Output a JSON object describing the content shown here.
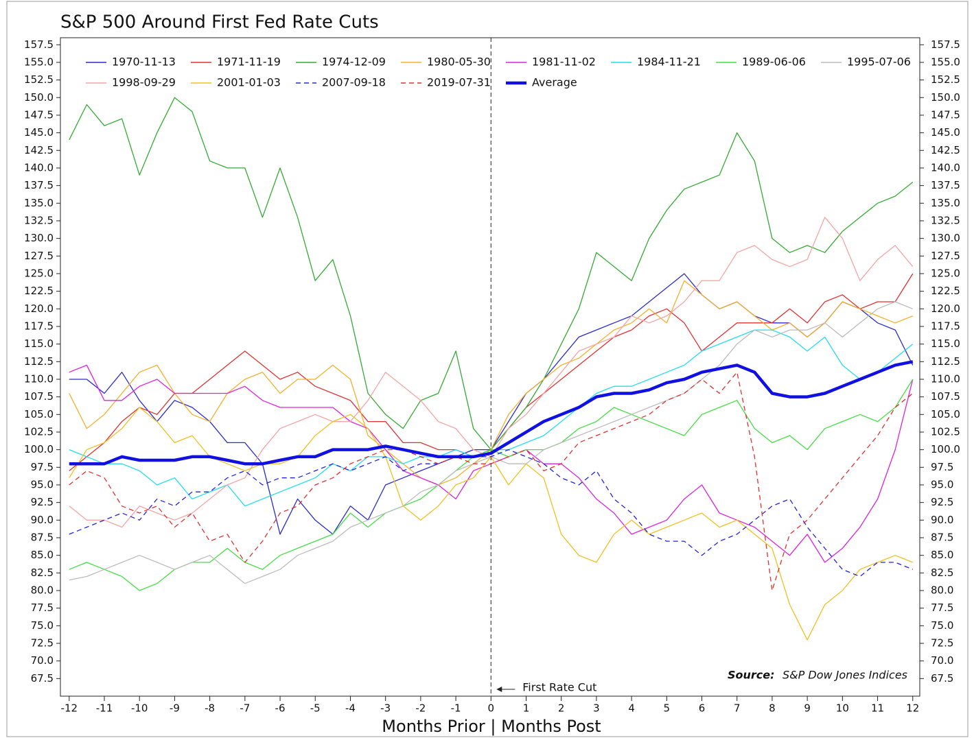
{
  "chart_data": {
    "type": "line",
    "title": "S&P 500 Around First Fed Rate Cuts",
    "x_label": "Months Prior | Months Post",
    "annotation": "First Rate Cut",
    "source_label": "Source:",
    "source": "S&P Dow Jones Indices",
    "xlim": [
      -12.25,
      12.2
    ],
    "ylim": [
      65,
      158.5
    ],
    "xticks": [
      -12,
      -11,
      -10,
      -9,
      -8,
      -7,
      -6,
      -5,
      -4,
      -3,
      -2,
      -1,
      0,
      1,
      2,
      3,
      4,
      5,
      6,
      7,
      8,
      9,
      10,
      11,
      12
    ],
    "yticks": [
      67.5,
      {
        "value": 70,
        "label": "70.0"
      },
      72.5,
      {
        "value": 75,
        "label": "75.0"
      },
      77.5,
      {
        "value": 80,
        "label": "80.0"
      },
      82.5,
      {
        "value": 85,
        "label": "85.0"
      },
      87.5,
      {
        "value": 90,
        "label": "90.0"
      },
      92.5,
      {
        "value": 95,
        "label": "95.0"
      },
      97.5,
      {
        "value": 100,
        "label": "100.0"
      },
      102.5,
      {
        "value": 105,
        "label": "105.0"
      },
      107.5,
      {
        "value": 110,
        "label": "110.0"
      },
      112.5,
      {
        "value": 115,
        "label": "115.0"
      },
      117.5,
      {
        "value": 120,
        "label": "120.0"
      },
      122.5,
      {
        "value": 125,
        "label": "125.0"
      },
      127.5,
      {
        "value": 130,
        "label": "130.0"
      },
      132.5,
      {
        "value": 135,
        "label": "135.0"
      },
      137.5,
      {
        "value": 140,
        "label": "140.0"
      },
      142.5,
      {
        "value": 145,
        "label": "145.0"
      },
      147.5,
      {
        "value": 150,
        "label": "150.0"
      },
      152.5,
      {
        "value": 155,
        "label": "155.0"
      },
      157.5
    ],
    "marker_x": 0,
    "x": [
      -12,
      -11.5,
      -11,
      -10.5,
      -10,
      -9.5,
      -9,
      -8.5,
      -8,
      -7.5,
      -7,
      -6.5,
      -6,
      -5.5,
      -5,
      -4.5,
      -4,
      -3.5,
      -3,
      -2.5,
      -2,
      -1.5,
      -1,
      -0.5,
      0,
      0.5,
      1,
      1.5,
      2,
      2.5,
      3,
      3.5,
      4,
      4.5,
      5,
      5.5,
      6,
      6.5,
      7,
      7.5,
      8,
      8.5,
      9,
      9.5,
      10,
      10.5,
      11,
      11.5,
      12
    ],
    "series": [
      {
        "name": "1970-11-13",
        "color": "#2a2ad0",
        "values": [
          110,
          110,
          108,
          111,
          107,
          104,
          107,
          106,
          104,
          101,
          101,
          98,
          88,
          93,
          90,
          88,
          92,
          90,
          95,
          96,
          97,
          98,
          99,
          100,
          100,
          104,
          108,
          110,
          113,
          116,
          117,
          118,
          119,
          121,
          123,
          125,
          122,
          120,
          121,
          119,
          118,
          118,
          116,
          118,
          121,
          120,
          118,
          117,
          112
        ]
      },
      {
        "name": "1971-11-19",
        "color": "#e03030",
        "values": [
          97,
          99,
          101,
          104,
          106,
          105,
          108,
          108,
          110,
          112,
          114,
          112,
          110,
          111,
          109,
          108,
          107,
          104,
          104,
          101,
          101,
          100,
          100,
          99,
          100,
          103,
          106,
          108,
          110,
          112,
          114,
          116,
          117,
          119,
          120,
          118,
          114,
          116,
          118,
          118,
          118,
          120,
          118,
          121,
          122,
          120,
          121,
          121,
          125
        ]
      },
      {
        "name": "1974-12-09",
        "color": "#33aa33",
        "values": [
          144,
          149,
          146,
          147,
          139,
          145,
          150,
          148,
          141,
          140,
          140,
          133,
          140,
          133,
          124,
          127,
          119,
          108,
          105,
          103,
          107,
          108,
          114,
          103,
          100,
          103,
          106,
          110,
          115,
          120,
          128,
          126,
          124,
          130,
          134,
          137,
          138,
          139,
          145,
          141,
          130,
          128,
          129,
          128,
          131,
          133,
          135,
          136,
          138
        ]
      },
      {
        "name": "1980-05-30",
        "color": "#f5b02a",
        "values": [
          108,
          103,
          105,
          108,
          111,
          112,
          108,
          105,
          104,
          108,
          110,
          111,
          108,
          110,
          110,
          112,
          110,
          102,
          100,
          98,
          96,
          95,
          96,
          98,
          100,
          105,
          108,
          110,
          112,
          113,
          115,
          117,
          118,
          120,
          118,
          124,
          122,
          120,
          121,
          119,
          117,
          118,
          116,
          118,
          121,
          120,
          119,
          118,
          119
        ]
      },
      {
        "name": "1981-11-02",
        "color": "#dd22dd",
        "values": [
          111,
          112,
          107,
          107,
          109,
          110,
          108,
          108,
          108,
          108,
          109,
          107,
          106,
          106,
          106,
          106,
          104,
          103,
          100,
          97,
          96,
          95,
          93,
          97,
          98,
          99,
          100,
          98,
          98,
          96,
          93,
          91,
          88,
          89,
          90,
          93,
          95,
          91,
          90,
          89,
          87,
          85,
          88,
          84,
          86,
          89,
          93,
          100,
          110
        ]
      },
      {
        "name": "1984-11-21",
        "color": "#22ddee",
        "values": [
          100,
          99,
          98,
          98,
          97,
          95,
          96,
          93,
          94,
          95,
          92,
          93,
          94,
          95,
          96,
          98,
          97,
          99,
          99,
          98,
          99,
          99,
          100,
          99,
          100,
          100,
          101,
          102,
          104,
          106,
          108,
          109,
          109,
          110,
          111,
          112,
          114,
          115,
          116,
          117,
          117,
          116,
          114,
          116,
          112,
          110,
          111,
          113,
          115
        ]
      },
      {
        "name": "1989-06-06",
        "color": "#44dd44",
        "values": [
          83,
          84,
          83,
          82,
          80,
          81,
          83,
          84,
          84,
          86,
          84,
          83,
          85,
          86,
          87,
          88,
          91,
          89,
          91,
          92,
          93,
          95,
          97,
          99,
          100,
          99,
          100,
          100,
          101,
          103,
          104,
          106,
          105,
          104,
          103,
          102,
          105,
          106,
          107,
          103,
          101,
          102,
          100,
          103,
          104,
          105,
          104,
          106,
          110
        ]
      },
      {
        "name": "1995-07-06",
        "color": "#bbbbbb",
        "values": [
          81.5,
          82,
          83,
          84,
          85,
          84,
          83,
          84,
          85,
          83,
          81,
          82,
          83,
          85,
          86,
          87,
          89,
          90,
          91,
          92,
          94,
          95,
          97,
          98,
          99,
          98,
          98,
          100,
          101,
          102,
          103,
          104,
          105,
          106,
          107,
          108,
          110,
          112,
          115,
          117,
          116,
          117,
          117,
          118,
          116,
          118,
          120,
          121,
          120
        ]
      },
      {
        "name": "1998-09-29",
        "color": "#f4a4a4",
        "values": [
          92,
          90,
          90,
          89,
          92,
          91,
          90,
          91,
          93,
          95,
          96,
          100,
          103,
          104,
          105,
          104,
          104,
          107,
          111,
          109,
          107,
          104,
          103,
          100,
          99,
          103,
          105,
          108,
          111,
          114,
          115,
          116,
          119,
          118,
          119,
          121,
          124,
          124,
          128,
          129,
          127,
          126,
          127,
          133,
          130,
          124,
          127,
          129,
          126
        ]
      },
      {
        "name": "2001-01-03",
        "color": "#f0c020",
        "values": [
          96,
          100,
          101,
          103,
          106,
          104,
          101,
          102,
          99,
          98,
          97,
          98,
          98,
          99,
          102,
          104,
          105,
          103,
          99,
          92,
          90,
          92,
          95,
          96,
          99,
          95,
          98,
          96,
          88,
          85,
          84,
          88,
          90,
          88,
          89,
          90,
          91,
          89,
          90,
          88,
          86,
          78,
          73,
          78,
          80,
          83,
          84,
          85,
          84
        ]
      },
      {
        "name": "2007-09-18",
        "color": "#2222dd",
        "dash": true,
        "values": [
          88,
          89,
          90,
          91,
          90,
          93,
          92,
          94,
          94,
          96,
          97,
          95,
          96,
          96,
          97,
          98,
          97,
          98,
          99,
          97,
          98,
          98,
          99,
          99,
          99,
          100,
          99,
          98,
          96,
          95,
          97,
          93,
          91,
          88,
          87,
          87,
          85,
          87,
          88,
          90,
          92,
          93,
          89,
          86,
          83,
          82,
          84,
          84,
          83
        ]
      },
      {
        "name": "2019-07-31",
        "color": "#e03030",
        "dash": true,
        "values": [
          95,
          97,
          96,
          92,
          91,
          92,
          89,
          91,
          87,
          88,
          84,
          87,
          91,
          92,
          95,
          96,
          98,
          99,
          100,
          100,
          99,
          98,
          99,
          98,
          98,
          99,
          100,
          97,
          98,
          101,
          102,
          103,
          104,
          105,
          107,
          108,
          110,
          108,
          111,
          99,
          80,
          88,
          90,
          93,
          96,
          99,
          102,
          106,
          108
        ]
      },
      {
        "name": "Average",
        "color": "#1010e0",
        "thick": true,
        "values": [
          98,
          98,
          98,
          99,
          98.5,
          98.5,
          98.5,
          99,
          99,
          98.5,
          98,
          98,
          98.5,
          99,
          99,
          100,
          100,
          100,
          100.5,
          100,
          99.5,
          99,
          99,
          99,
          99.5,
          101,
          102.5,
          104,
          105,
          106,
          107.5,
          108,
          108,
          108.5,
          109.5,
          110,
          111,
          111.5,
          112,
          111,
          108,
          107.5,
          107.5,
          108,
          109,
          110,
          111,
          112,
          112.5
        ]
      }
    ]
  }
}
